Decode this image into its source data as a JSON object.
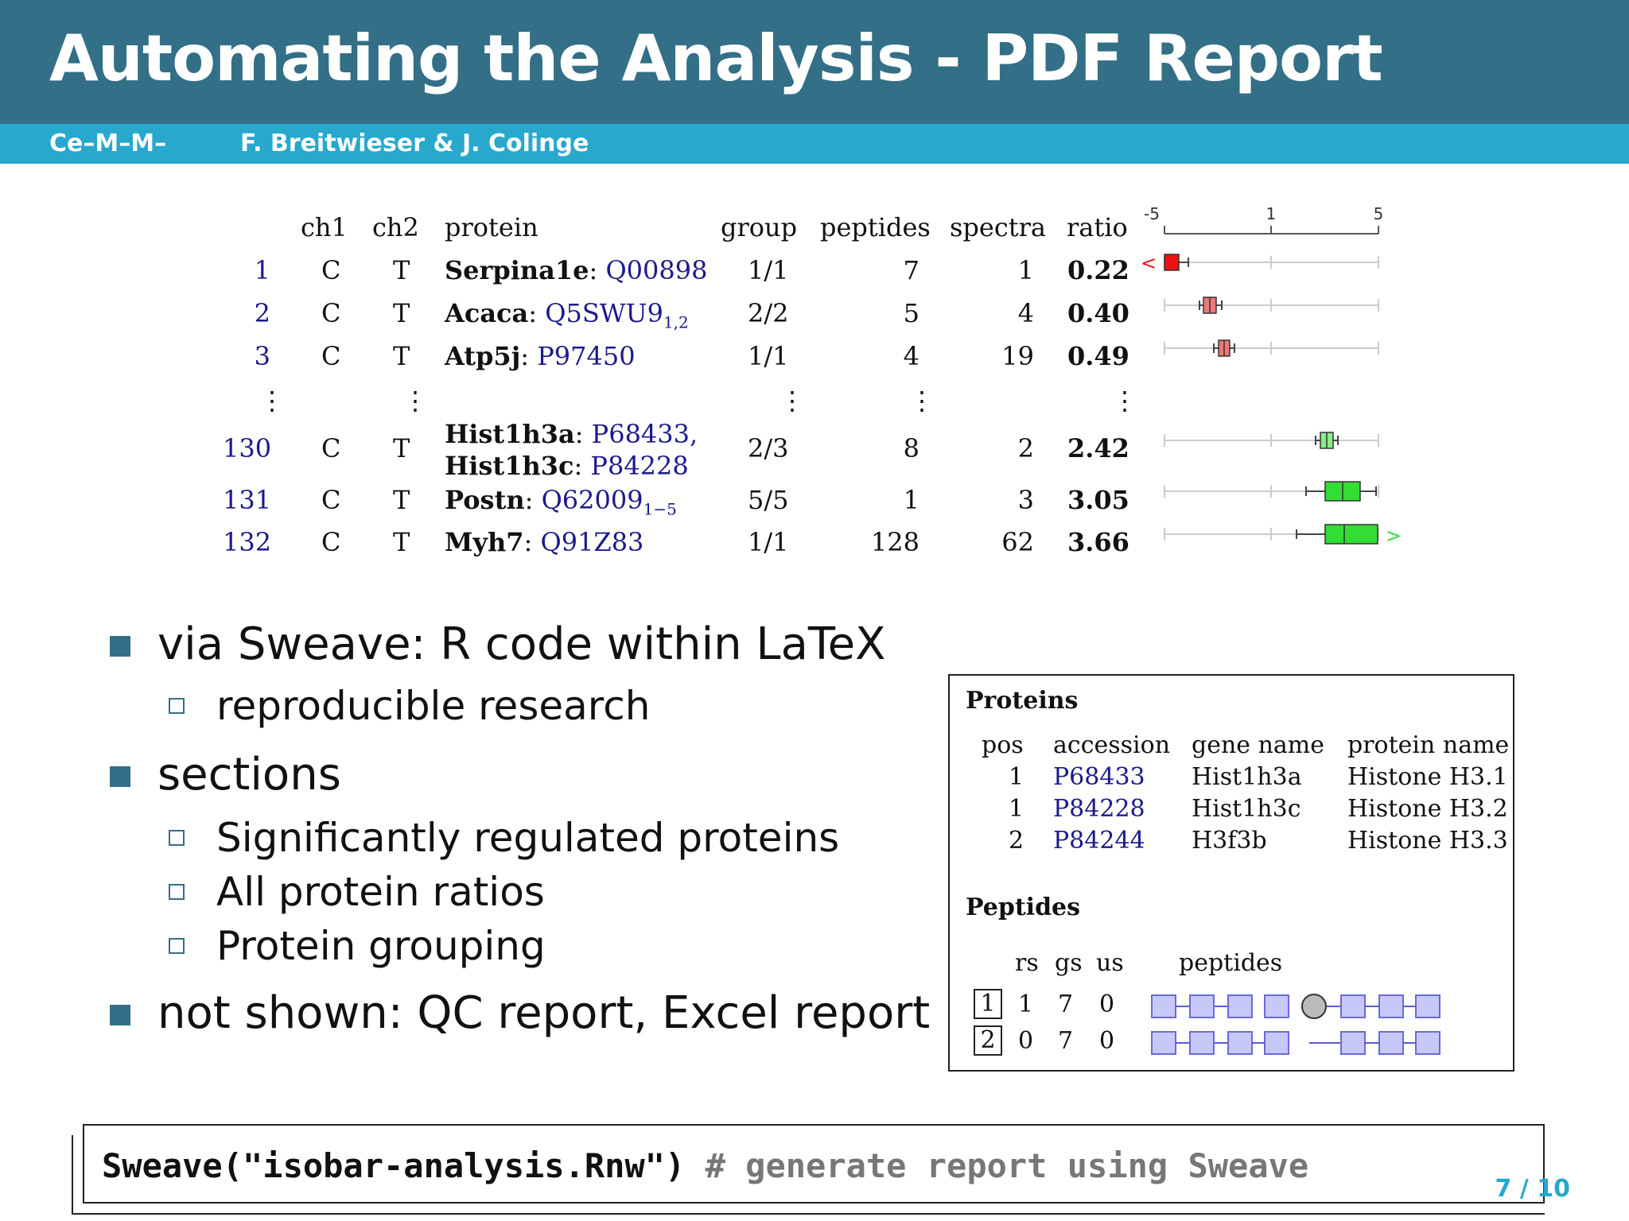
{
  "slide": {
    "title": "Automating the Analysis - PDF Report",
    "institute": "Ce–M–M–",
    "authors": "F. Breitwieser & J. Colinge",
    "page": "7 / 10"
  },
  "ratio_table": {
    "headers": {
      "ch1": "ch1",
      "ch2": "ch2",
      "protein": "protein",
      "group": "group",
      "peptides": "peptides",
      "spectra": "spectra",
      "ratio": "ratio"
    },
    "axis_ticks": [
      "-5",
      "1",
      "5"
    ],
    "rows": [
      {
        "idx": "1",
        "ch1": "C",
        "ch2": "T",
        "gene": "Serpina1e",
        "acc": "Q00898",
        "sub": "",
        "group": "1/1",
        "peptides": "7",
        "spectra": "1",
        "ratio": "0.22"
      },
      {
        "idx": "2",
        "ch1": "C",
        "ch2": "T",
        "gene": "Acaca",
        "acc": "Q5SWU9",
        "sub": "1,2",
        "group": "2/2",
        "peptides": "5",
        "spectra": "4",
        "ratio": "0.40"
      },
      {
        "idx": "3",
        "ch1": "C",
        "ch2": "T",
        "gene": "Atp5j",
        "acc": "P97450",
        "sub": "",
        "group": "1/1",
        "peptides": "4",
        "spectra": "19",
        "ratio": "0.49"
      },
      {
        "idx": "130",
        "ch1": "C",
        "ch2": "T",
        "gene": "Hist1h3a",
        "acc": "P68433,",
        "gene2": "Hist1h3c",
        "acc2": "P84228",
        "sub": "",
        "group": "2/3",
        "peptides": "8",
        "spectra": "2",
        "ratio": "2.42"
      },
      {
        "idx": "131",
        "ch1": "C",
        "ch2": "T",
        "gene": "Postn",
        "acc": "Q62009",
        "sub": "1−5",
        "group": "5/5",
        "peptides": "1",
        "spectra": "3",
        "ratio": "3.05"
      },
      {
        "idx": "132",
        "ch1": "C",
        "ch2": "T",
        "gene": "Myh7",
        "acc": "Q91Z83",
        "sub": "",
        "group": "1/1",
        "peptides": "128",
        "spectra": "62",
        "ratio": "3.66"
      }
    ],
    "ellipsis": "⋮",
    "out_low": "<",
    "out_high": ">"
  },
  "bullets": {
    "b1": "via Sweave: R code within LaTeX",
    "b1a": "reproducible research",
    "b2": "sections",
    "b2a": "Significantly regulated proteins",
    "b2b": "All protein ratios",
    "b2c": "Protein grouping",
    "b3": "not shown: QC report, Excel report"
  },
  "group_box": {
    "proteins_title": "Proteins",
    "protein_headers": [
      "pos",
      "accession",
      "gene name",
      "protein name"
    ],
    "proteins": [
      [
        "1",
        "P68433",
        "Hist1h3a",
        "Histone H3.1"
      ],
      [
        "1",
        "P84228",
        "Hist1h3c",
        "Histone H3.2"
      ],
      [
        "2",
        "P84244",
        "H3f3b",
        "Histone H3.3"
      ]
    ],
    "peptides_title": "Peptides",
    "peptide_headers": [
      "rs",
      "gs",
      "us",
      "peptides"
    ],
    "peptide_rows": [
      [
        "1",
        "1",
        "7",
        "0"
      ],
      [
        "2",
        "0",
        "7",
        "0"
      ]
    ]
  },
  "code": {
    "call": "Sweave(\"isobar-analysis.Rnw\")",
    "comment": " # generate report using Sweave"
  },
  "colors": {
    "header": "#336f87",
    "subbar": "#27a8cc",
    "link": "#1a1a8c",
    "down": "#ee1111",
    "down_light": "#ee7777",
    "up": "#33dd33",
    "peptide_box": "#c8c8f8"
  }
}
